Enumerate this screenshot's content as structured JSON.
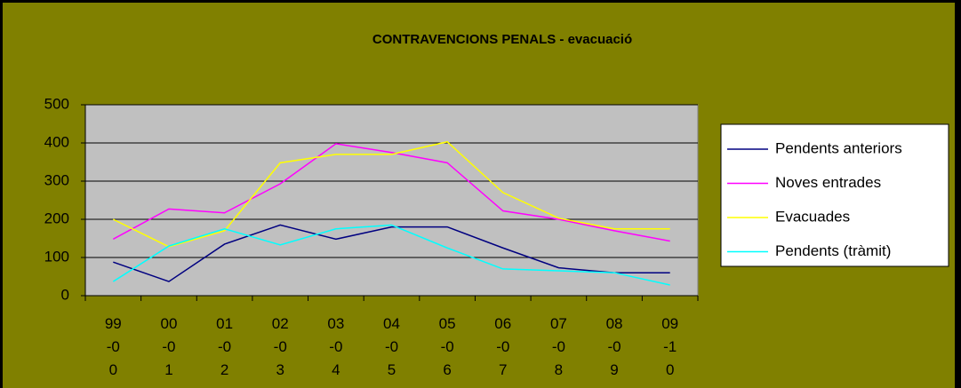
{
  "chart_data": {
    "type": "line",
    "title": "CONTRAVENCIONS PENALS - evacuació",
    "categories": [
      "99-00",
      "00-01",
      "01-02",
      "02-03",
      "03-04",
      "04-05",
      "05-06",
      "06-07",
      "07-08",
      "08-09",
      "09-10"
    ],
    "series": [
      {
        "name": "Pendents anteriors",
        "color": "#000080",
        "values": [
          88,
          37,
          135,
          185,
          148,
          180,
          180,
          125,
          73,
          60,
          60
        ]
      },
      {
        "name": "Noves entrades",
        "color": "#ff00ff",
        "values": [
          148,
          227,
          217,
          293,
          398,
          375,
          348,
          222,
          200,
          170,
          143
        ]
      },
      {
        "name": "Evacuades",
        "color": "#ffff00",
        "values": [
          200,
          128,
          170,
          348,
          370,
          370,
          403,
          270,
          203,
          175,
          175
        ]
      },
      {
        "name": "Pendents (tràmit)",
        "color": "#00ffff",
        "values": [
          37,
          130,
          175,
          133,
          175,
          185,
          125,
          70,
          65,
          60,
          28
        ]
      }
    ],
    "ylim": [
      0,
      500
    ],
    "yticks": [
      0,
      100,
      200,
      300,
      400,
      500
    ],
    "grid": true,
    "legend": "right"
  }
}
